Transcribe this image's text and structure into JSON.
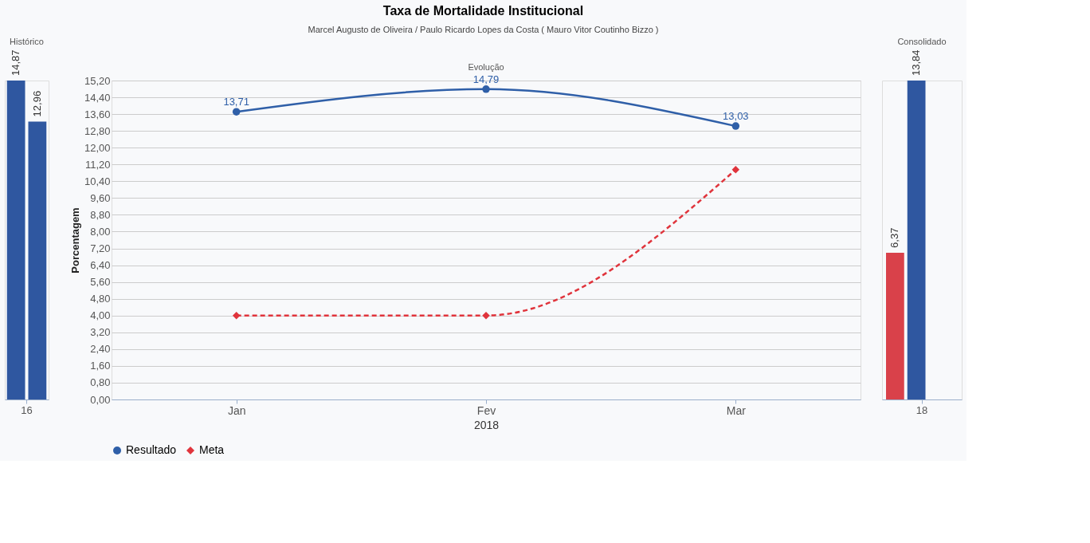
{
  "chart_data": [
    {
      "type": "bar",
      "title": "Histórico",
      "categories": [
        "16"
      ],
      "tick_labels": "x",
      "series": [
        {
          "color": "#2f57a0",
          "values": [
            14.87
          ],
          "value_labels": [
            "14,87"
          ]
        },
        {
          "color": "#2f57a0",
          "values": [
            12.96
          ],
          "value_labels": [
            "12,96"
          ]
        }
      ]
    },
    {
      "type": "line",
      "title": "Evolução",
      "annotations": [
        "Taxa de Mortalidade Institucional",
        "Marcel Augusto de Oliveira / Paulo Ricardo Lopes da Costa ( Mauro Vitor Coutinho Bizzo )"
      ],
      "categories": [
        "Jan",
        "Fev",
        "Mar"
      ],
      "xlabel": "2018",
      "ylabel": "Porcentagem",
      "ylim": [
        0,
        15.2
      ],
      "yticks": [
        {
          "value": 0,
          "label": "0,00"
        },
        {
          "value": 0.8,
          "label": "0,80"
        },
        {
          "value": 1.6,
          "label": "1,60"
        },
        {
          "value": 2.4,
          "label": "2,40"
        },
        {
          "value": 3.2,
          "label": "3,20"
        },
        {
          "value": 4,
          "label": "4,00"
        },
        {
          "value": 4.8,
          "label": "4,80"
        },
        {
          "value": 5.6,
          "label": "5,60"
        },
        {
          "value": 6.4,
          "label": "6,40"
        },
        {
          "value": 7.2,
          "label": "7,20"
        },
        {
          "value": 8,
          "label": "8,00"
        },
        {
          "value": 8.8,
          "label": "8,80"
        },
        {
          "value": 9.6,
          "label": "9,60"
        },
        {
          "value": 10.4,
          "label": "10,40"
        },
        {
          "value": 11.2,
          "label": "11,20"
        },
        {
          "value": 12,
          "label": "12,00"
        },
        {
          "value": 12.8,
          "label": "12,80"
        },
        {
          "value": 13.6,
          "label": "13,60"
        },
        {
          "value": 14.4,
          "label": "14,40"
        },
        {
          "value": 15.2,
          "label": "15,20"
        }
      ],
      "grid": "y",
      "legend": "bottom",
      "series": [
        {
          "name": "Resultado",
          "color": "#2f5fa8",
          "values": [
            13.71,
            14.79,
            13.03
          ],
          "value_labels": [
            "13,71",
            "14,79",
            "13,03"
          ],
          "marker": "circle",
          "line_style": "solid"
        },
        {
          "name": "Meta",
          "color": "#e0343c",
          "values": [
            4.0,
            4.0,
            10.95
          ],
          "marker": "diamond",
          "line_style": "dashed"
        }
      ]
    },
    {
      "type": "bar",
      "title": "Consolidado",
      "categories": [
        "18"
      ],
      "tick_labels": "x",
      "series": [
        {
          "color": "#d9414a",
          "values": [
            6.37
          ],
          "value_labels": [
            "6,37"
          ]
        },
        {
          "color": "#2f57a0",
          "values": [
            13.84
          ],
          "value_labels": [
            "13,84"
          ]
        }
      ]
    }
  ]
}
